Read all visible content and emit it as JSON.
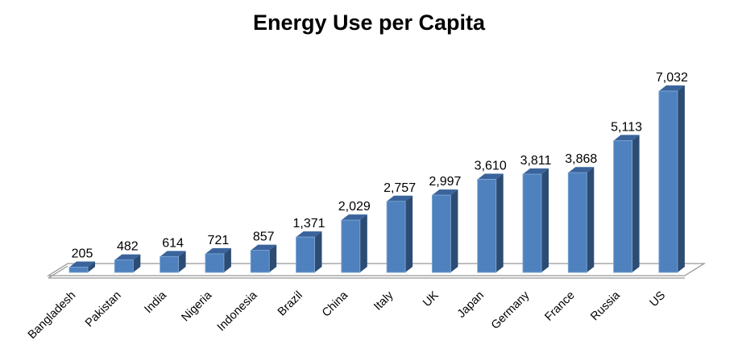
{
  "chart_data": {
    "type": "bar",
    "variant": "3d-column",
    "title": "Energy Use per Capita",
    "categories": [
      "Bangladesh",
      "Pakistan",
      "India",
      "Nigeria",
      "Indonesia",
      "Brazil",
      "China",
      "Italy",
      "UK",
      "Japan",
      "Germany",
      "France",
      "Russia",
      "US"
    ],
    "values": [
      205,
      482,
      614,
      721,
      857,
      1371,
      2029,
      2757,
      2997,
      3610,
      3811,
      3868,
      5113,
      7032
    ],
    "value_labels": [
      "205",
      "482",
      "614",
      "721",
      "857",
      "1,371",
      "2,029",
      "2,757",
      "2,997",
      "3,610",
      "3,811",
      "3,868",
      "5,113",
      "7,032"
    ],
    "xlabel": "",
    "ylabel": "",
    "ylim": [
      0,
      7032
    ],
    "grid": "off",
    "legend": "none",
    "category_label_rotation_deg": -45,
    "colors": {
      "bar_front": "#4E81BD",
      "bar_front_edge": "#7FA7D4",
      "bar_top": "#3A639B",
      "bar_side": "#2C4C74",
      "floor_stroke": "#969696",
      "label_text": "#000000",
      "title_text": "#000000",
      "background": "#FFFFFF"
    }
  }
}
